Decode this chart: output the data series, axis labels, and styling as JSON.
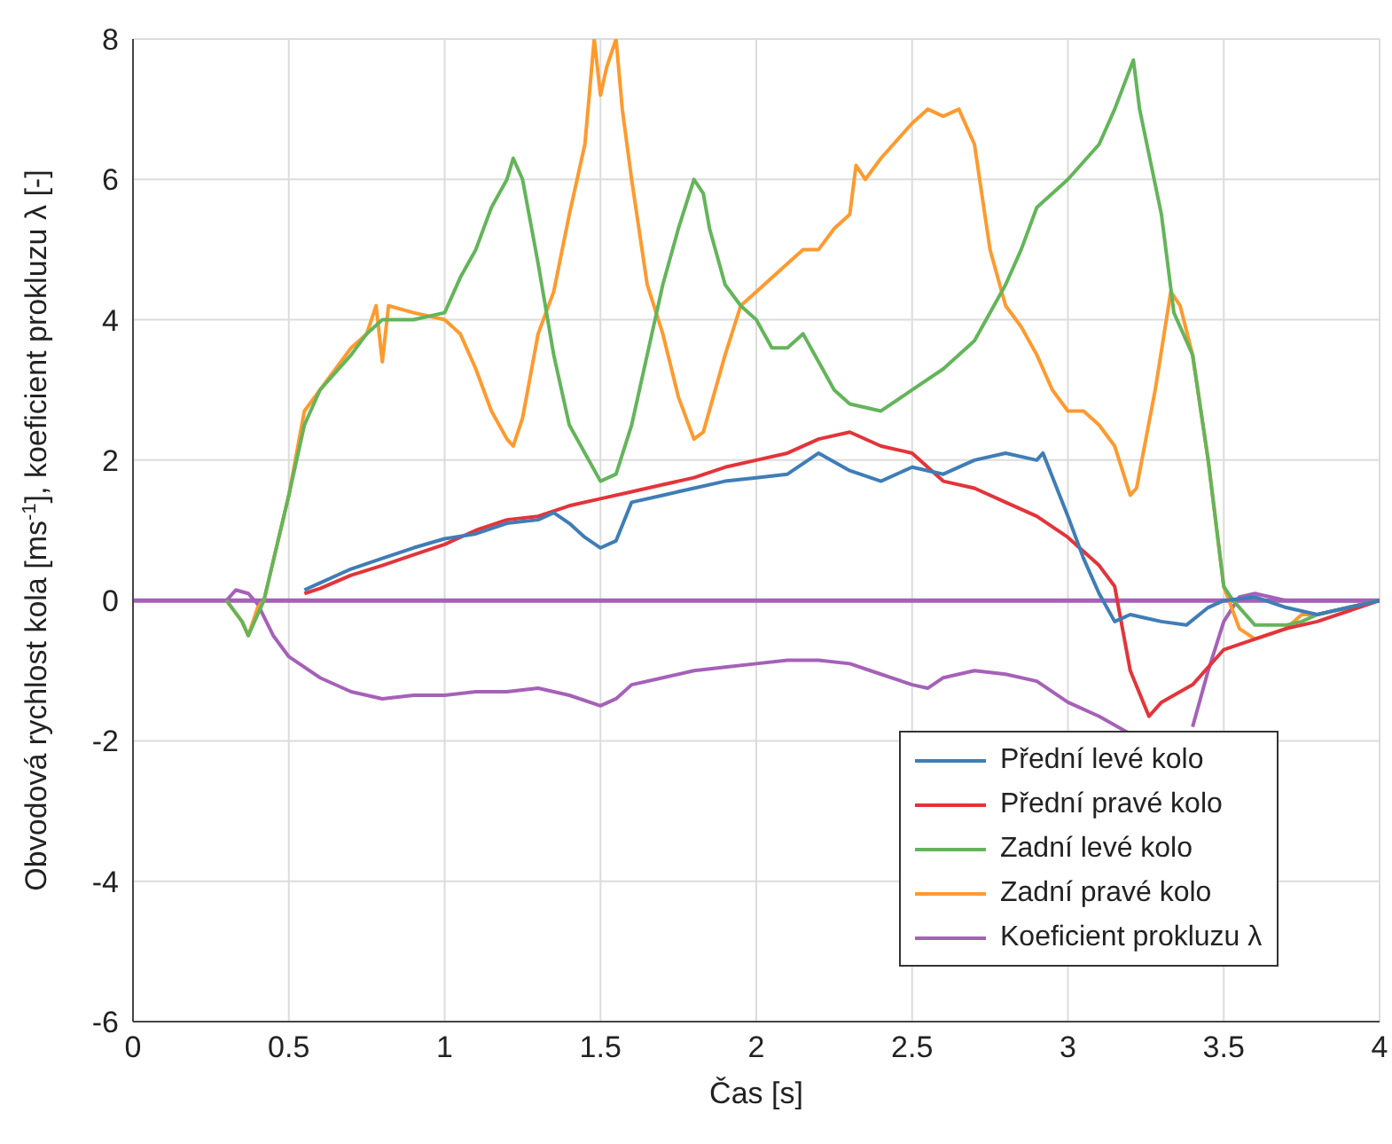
{
  "chart_data": {
    "type": "line",
    "xlabel": "Čas [s]",
    "ylabel": "Obvodová rychlost kola [ms$^{-1}$], koeficient prokluzu λ [-]",
    "xlim": [
      0,
      4
    ],
    "xticks": [
      0,
      0.5,
      1,
      1.5,
      2,
      2.5,
      3,
      3.5,
      4
    ],
    "ylim": [
      -6,
      8
    ],
    "yticks": [
      -6,
      -4,
      -2,
      0,
      2,
      4,
      6,
      8
    ],
    "grid": true,
    "legend": "bottom right",
    "ref_lines": [
      {
        "axis": "y",
        "value": 0,
        "color": "#a561b8"
      }
    ],
    "series": [
      {
        "name": "Přední levé kolo",
        "color": "#3f7db6",
        "x": [
          0.55,
          0.6,
          0.7,
          0.8,
          0.9,
          1.0,
          1.1,
          1.2,
          1.3,
          1.35,
          1.4,
          1.45,
          1.5,
          1.55,
          1.6,
          1.7,
          1.8,
          1.9,
          2.0,
          2.1,
          2.2,
          2.3,
          2.4,
          2.5,
          2.6,
          2.7,
          2.8,
          2.9,
          2.92,
          3.0,
          3.05,
          3.1,
          3.15,
          3.2,
          3.25,
          3.3,
          3.38,
          3.45,
          3.5,
          3.6,
          3.7,
          3.8,
          3.9,
          4.0
        ],
        "values": [
          0.15,
          0.25,
          0.45,
          0.6,
          0.75,
          0.88,
          0.95,
          1.1,
          1.15,
          1.25,
          1.1,
          0.9,
          0.75,
          0.85,
          1.4,
          1.5,
          1.6,
          1.7,
          1.75,
          1.8,
          2.1,
          1.85,
          1.7,
          1.9,
          1.8,
          2.0,
          2.1,
          2.0,
          2.1,
          1.2,
          0.6,
          0.1,
          -0.3,
          -0.2,
          -0.25,
          -0.3,
          -0.35,
          -0.1,
          0,
          0.05,
          -0.1,
          -0.2,
          -0.1,
          0
        ]
      },
      {
        "name": "Přední pravé kolo",
        "color": "#e3343a",
        "x": [
          0.55,
          0.6,
          0.7,
          0.8,
          0.9,
          1.0,
          1.1,
          1.2,
          1.3,
          1.4,
          1.5,
          1.6,
          1.7,
          1.8,
          1.9,
          2.0,
          2.1,
          2.2,
          2.3,
          2.4,
          2.5,
          2.6,
          2.7,
          2.8,
          2.9,
          3.0,
          3.1,
          3.15,
          3.2,
          3.26,
          3.3,
          3.4,
          3.5,
          3.6,
          3.7,
          3.8,
          3.9,
          4.0
        ],
        "values": [
          0.1,
          0.17,
          0.36,
          0.5,
          0.65,
          0.8,
          1.0,
          1.15,
          1.2,
          1.35,
          1.45,
          1.55,
          1.65,
          1.75,
          1.9,
          2.0,
          2.1,
          2.3,
          2.4,
          2.2,
          2.1,
          1.7,
          1.6,
          1.4,
          1.2,
          0.9,
          0.5,
          0.2,
          -1.0,
          -1.65,
          -1.45,
          -1.2,
          -0.7,
          -0.55,
          -0.4,
          -0.3,
          -0.15,
          0
        ]
      },
      {
        "name": "Zadní levé kolo",
        "color": "#63b55a",
        "x": [
          0.3,
          0.35,
          0.37,
          0.42,
          0.5,
          0.55,
          0.6,
          0.7,
          0.75,
          0.8,
          0.9,
          1.0,
          1.05,
          1.1,
          1.15,
          1.2,
          1.22,
          1.25,
          1.3,
          1.35,
          1.4,
          1.45,
          1.5,
          1.55,
          1.6,
          1.65,
          1.7,
          1.75,
          1.8,
          1.83,
          1.85,
          1.9,
          1.95,
          2.0,
          2.05,
          2.1,
          2.15,
          2.2,
          2.25,
          2.3,
          2.4,
          2.5,
          2.6,
          2.7,
          2.8,
          2.85,
          2.9,
          3.0,
          3.1,
          3.15,
          3.21,
          3.23,
          3.3,
          3.34,
          3.4,
          3.45,
          3.5,
          3.53,
          3.6,
          3.7,
          3.75,
          3.8,
          3.9,
          4.0
        ],
        "values": [
          0,
          -0.3,
          -0.5,
          0,
          1.5,
          2.5,
          3.0,
          3.5,
          3.8,
          4.0,
          4.0,
          4.1,
          4.6,
          5.0,
          5.6,
          6.0,
          6.3,
          6.0,
          4.8,
          3.5,
          2.5,
          2.1,
          1.7,
          1.8,
          2.5,
          3.5,
          4.5,
          5.3,
          6.0,
          5.8,
          5.3,
          4.5,
          4.2,
          4.0,
          3.6,
          3.6,
          3.8,
          3.4,
          3.0,
          2.8,
          2.7,
          3.0,
          3.3,
          3.7,
          4.5,
          5.0,
          5.6,
          6.0,
          6.5,
          7.0,
          7.7,
          7.0,
          5.5,
          4.1,
          3.5,
          2.0,
          0.2,
          0,
          -0.35,
          -0.35,
          -0.3,
          -0.2,
          -0.1,
          0
        ]
      },
      {
        "name": "Zadní pravé kolo",
        "color": "#ff9a2e",
        "x": [
          0.3,
          0.35,
          0.37,
          0.4,
          0.42,
          0.5,
          0.55,
          0.6,
          0.7,
          0.75,
          0.78,
          0.8,
          0.82,
          0.9,
          1.0,
          1.05,
          1.1,
          1.15,
          1.2,
          1.22,
          1.25,
          1.3,
          1.35,
          1.4,
          1.45,
          1.48,
          1.5,
          1.52,
          1.55,
          1.57,
          1.6,
          1.65,
          1.7,
          1.75,
          1.8,
          1.83,
          1.9,
          1.95,
          2.0,
          2.1,
          2.15,
          2.2,
          2.25,
          2.3,
          2.32,
          2.35,
          2.4,
          2.5,
          2.55,
          2.6,
          2.65,
          2.7,
          2.75,
          2.8,
          2.85,
          2.9,
          2.95,
          3.0,
          3.05,
          3.1,
          3.15,
          3.2,
          3.22,
          3.28,
          3.33,
          3.36,
          3.4,
          3.45,
          3.5,
          3.55,
          3.6,
          3.7,
          3.75,
          3.8,
          3.9,
          4.0
        ],
        "values": [
          0,
          -0.3,
          -0.5,
          -0.1,
          0,
          1.5,
          2.7,
          3.0,
          3.6,
          3.8,
          4.2,
          3.4,
          4.2,
          4.1,
          4.0,
          3.8,
          3.3,
          2.7,
          2.3,
          2.2,
          2.6,
          3.8,
          4.4,
          5.5,
          6.5,
          8.0,
          7.2,
          7.6,
          8.0,
          7.0,
          6.0,
          4.5,
          3.8,
          2.9,
          2.3,
          2.4,
          3.5,
          4.2,
          4.4,
          4.8,
          5.0,
          5.0,
          5.3,
          5.5,
          6.2,
          6.0,
          6.3,
          6.8,
          7.0,
          6.9,
          7.0,
          6.5,
          5.0,
          4.2,
          3.9,
          3.5,
          3.0,
          2.7,
          2.7,
          2.5,
          2.2,
          1.5,
          1.6,
          3.0,
          4.4,
          4.2,
          3.5,
          2.0,
          0.2,
          -0.4,
          -0.55,
          -0.4,
          -0.2,
          -0.2,
          -0.1,
          0
        ]
      },
      {
        "name": "Koeficient prokluzu λ",
        "color": "#a561b8",
        "x": [
          0.3,
          0.33,
          0.37,
          0.4,
          0.45,
          0.5,
          0.6,
          0.7,
          0.8,
          0.9,
          1.0,
          1.1,
          1.2,
          1.3,
          1.4,
          1.5,
          1.55,
          1.6,
          1.7,
          1.8,
          1.9,
          2.0,
          2.1,
          2.2,
          2.3,
          2.4,
          2.5,
          2.55,
          2.6,
          2.7,
          2.8,
          2.9,
          3.0,
          3.1,
          3.2,
          3.25,
          3.3,
          3.4,
          3.45,
          3.5,
          3.55,
          3.6,
          3.65,
          3.7,
          4.0
        ],
        "values": [
          0,
          0.15,
          0.1,
          -0.05,
          -0.5,
          -0.8,
          -1.1,
          -1.3,
          -1.4,
          -1.35,
          -1.35,
          -1.3,
          -1.3,
          -1.25,
          -1.35,
          -1.5,
          -1.4,
          -1.2,
          -1.1,
          -1.0,
          -0.95,
          -0.9,
          -0.85,
          -0.85,
          -0.9,
          -1.05,
          -1.2,
          -1.25,
          -1.1,
          -1.0,
          -1.05,
          -1.15,
          -1.45,
          -1.65,
          -1.9,
          null,
          null,
          -1.8,
          -1.0,
          -0.3,
          0.05,
          0.1,
          0.05,
          0,
          0
        ]
      }
    ]
  }
}
